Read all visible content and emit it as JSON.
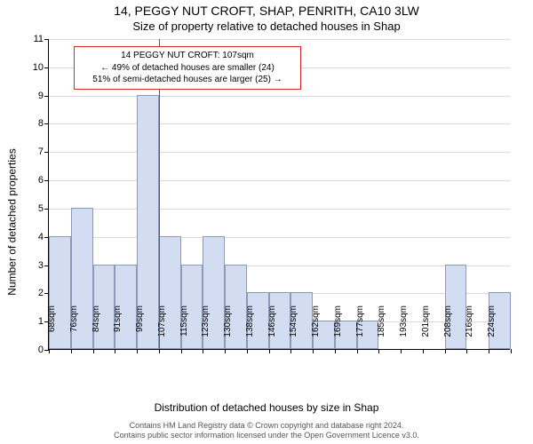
{
  "titles": {
    "main": "14, PEGGY NUT CROFT, SHAP, PENRITH, CA10 3LW",
    "sub": "Size of property relative to detached houses in Shap"
  },
  "axes": {
    "y_label": "Number of detached properties",
    "x_label": "Distribution of detached houses by size in Shap",
    "y_max": 11,
    "y_ticks": [
      0,
      1,
      2,
      3,
      4,
      5,
      6,
      7,
      8,
      9,
      10,
      11
    ]
  },
  "chart": {
    "type": "histogram",
    "bar_color": "#d2ddf1",
    "bar_border_color": "#8a9ab8",
    "bar_width_ratio": 1.0,
    "grid_color": "#d9d9d9",
    "background_color": "#ffffff",
    "bins": [
      {
        "label": "68sqm",
        "value": 4
      },
      {
        "label": "76sqm",
        "value": 5
      },
      {
        "label": "84sqm",
        "value": 3
      },
      {
        "label": "91sqm",
        "value": 3
      },
      {
        "label": "99sqm",
        "value": 9
      },
      {
        "label": "107sqm",
        "value": 4
      },
      {
        "label": "115sqm",
        "value": 3
      },
      {
        "label": "123sqm",
        "value": 4
      },
      {
        "label": "130sqm",
        "value": 3
      },
      {
        "label": "138sqm",
        "value": 2
      },
      {
        "label": "146sqm",
        "value": 2
      },
      {
        "label": "154sqm",
        "value": 2
      },
      {
        "label": "162sqm",
        "value": 1
      },
      {
        "label": "169sqm",
        "value": 1
      },
      {
        "label": "177sqm",
        "value": 1
      },
      {
        "label": "185sqm",
        "value": 0
      },
      {
        "label": "193sqm",
        "value": 0
      },
      {
        "label": "201sqm",
        "value": 0
      },
      {
        "label": "208sqm",
        "value": 3
      },
      {
        "label": "216sqm",
        "value": 0
      },
      {
        "label": "224sqm",
        "value": 2
      }
    ]
  },
  "marker": {
    "bin_index": 5,
    "line_color": "#d62728"
  },
  "annotation": {
    "line1": "14 PEGGY NUT CROFT: 107sqm",
    "line2": "← 49% of detached houses are smaller (24)",
    "line3": "51% of semi-detached houses are larger (25) →",
    "border_color": "#d62728",
    "text_color": "#000000",
    "fontsize": 10
  },
  "footer": {
    "line1": "Contains HM Land Registry data © Crown copyright and database right 2024.",
    "line2": "Contains public sector information licensed under the Open Government Licence v3.0."
  }
}
